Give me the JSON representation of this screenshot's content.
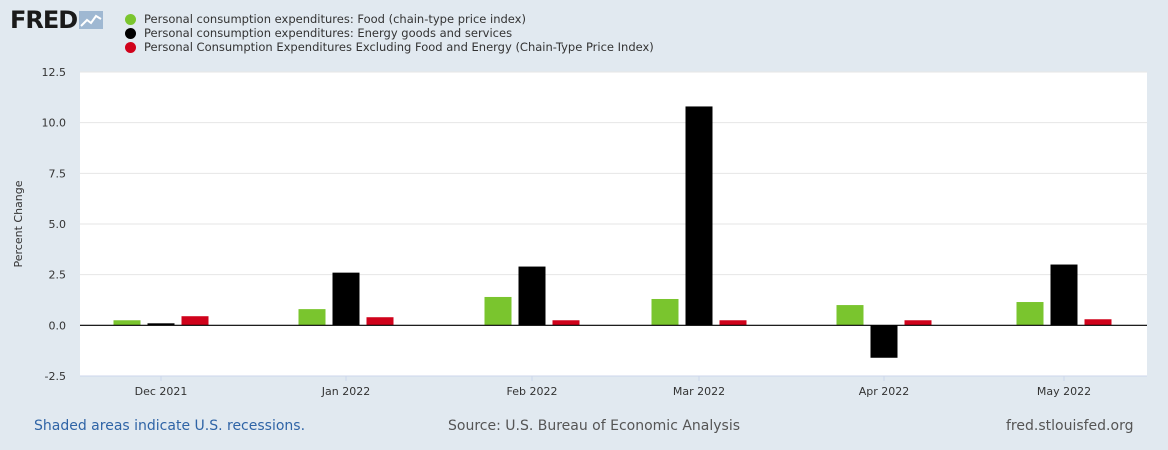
{
  "logo": {
    "text": "FRED"
  },
  "chart_data": {
    "type": "bar",
    "categories": [
      "Dec 2021",
      "Jan 2022",
      "Feb 2022",
      "Mar 2022",
      "Apr 2022",
      "May 2022"
    ],
    "series": [
      {
        "name": "Personal consumption expenditures: Food (chain-type price index)",
        "color": "#7ac52e",
        "values": [
          0.25,
          0.8,
          1.4,
          1.3,
          1.0,
          1.15
        ]
      },
      {
        "name": "Personal consumption expenditures: Energy goods and services",
        "color": "#000000",
        "values": [
          0.1,
          2.6,
          2.9,
          10.8,
          -1.6,
          3.0
        ]
      },
      {
        "name": "Personal Consumption Expenditures Excluding Food and Energy (Chain-Type Price Index)",
        "color": "#d0021b",
        "values": [
          0.45,
          0.4,
          0.25,
          0.25,
          0.25,
          0.3
        ]
      }
    ],
    "ylabel": "Percent Change",
    "ylim": [
      -2.5,
      12.5
    ],
    "yticks": [
      "-2.5",
      "0.0",
      "2.5",
      "5.0",
      "7.5",
      "10.0",
      "12.5"
    ],
    "grid": true,
    "legend": "top-left"
  },
  "footer": {
    "recession_note": "Shaded areas indicate U.S. recessions.",
    "source": "Source: U.S. Bureau of Economic Analysis",
    "site": "fred.stlouisfed.org"
  }
}
